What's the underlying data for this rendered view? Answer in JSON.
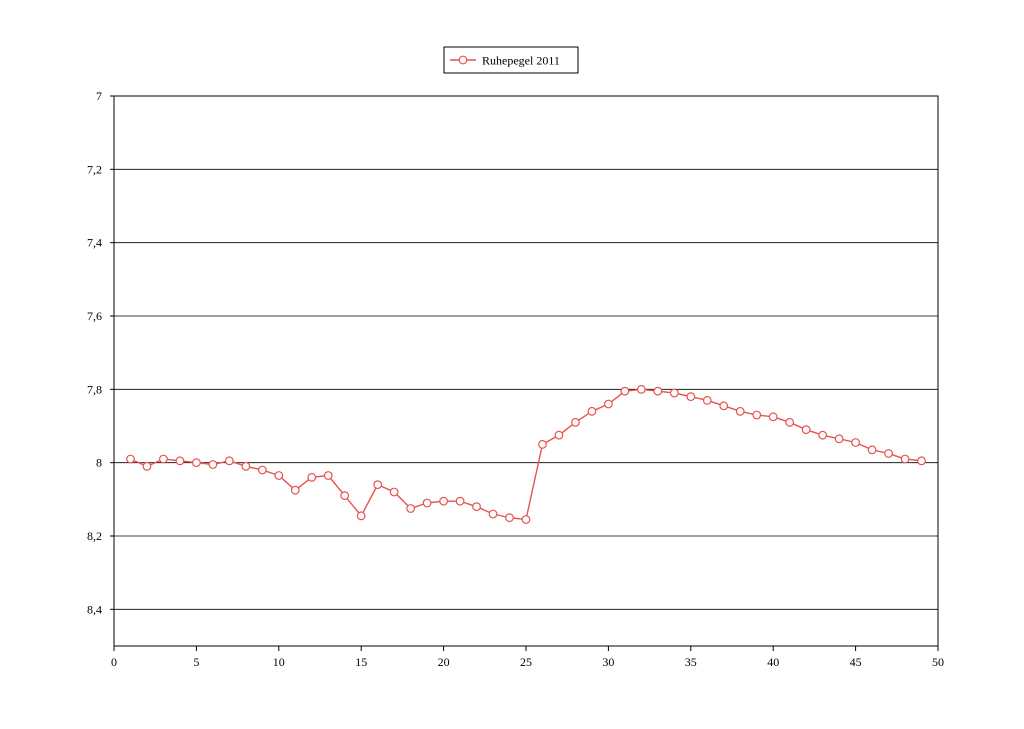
{
  "chart_data": {
    "type": "line",
    "legend": "top-center",
    "grid": true,
    "y_inverted": true,
    "xlim": [
      0,
      50
    ],
    "ylim": [
      7,
      8.5
    ],
    "x_ticks": [
      {
        "value": 0,
        "label": "0"
      },
      {
        "value": 5,
        "label": "5"
      },
      {
        "value": 10,
        "label": "10"
      },
      {
        "value": 15,
        "label": "15"
      },
      {
        "value": 20,
        "label": "20"
      },
      {
        "value": 25,
        "label": "25"
      },
      {
        "value": 30,
        "label": "30"
      },
      {
        "value": 35,
        "label": "35"
      },
      {
        "value": 40,
        "label": "40"
      },
      {
        "value": 45,
        "label": "45"
      },
      {
        "value": 50,
        "label": "50"
      }
    ],
    "y_ticks": [
      {
        "value": 7.0,
        "label": "7"
      },
      {
        "value": 7.2,
        "label": "7,2"
      },
      {
        "value": 7.4,
        "label": "7,4"
      },
      {
        "value": 7.6,
        "label": "7,6"
      },
      {
        "value": 7.8,
        "label": "7,8"
      },
      {
        "value": 8.0,
        "label": "8"
      },
      {
        "value": 8.2,
        "label": "8,2"
      },
      {
        "value": 8.4,
        "label": "8,4"
      }
    ],
    "series": [
      {
        "name": "Ruhepegel 2011",
        "color": "#e8524f",
        "x": [
          1,
          2,
          3,
          4,
          5,
          6,
          7,
          8,
          9,
          10,
          11,
          12,
          13,
          14,
          15,
          16,
          17,
          18,
          19,
          20,
          21,
          22,
          23,
          24,
          25,
          26,
          27,
          28,
          29,
          30,
          31,
          32,
          33,
          34,
          35,
          36,
          37,
          38,
          39,
          40,
          41,
          42,
          43,
          44,
          45,
          46,
          47,
          48,
          49
        ],
        "y": [
          7.99,
          8.01,
          7.99,
          7.995,
          8.0,
          8.005,
          7.995,
          8.01,
          8.02,
          8.035,
          8.075,
          8.04,
          8.035,
          8.09,
          8.145,
          8.06,
          8.08,
          8.125,
          8.11,
          8.105,
          8.105,
          8.12,
          8.14,
          8.15,
          8.155,
          7.95,
          7.925,
          7.89,
          7.86,
          7.84,
          7.805,
          7.8,
          7.805,
          7.81,
          7.82,
          7.83,
          7.845,
          7.86,
          7.87,
          7.875,
          7.89,
          7.91,
          7.925,
          7.935,
          7.945,
          7.965,
          7.975,
          7.99,
          7.995
        ]
      }
    ]
  }
}
